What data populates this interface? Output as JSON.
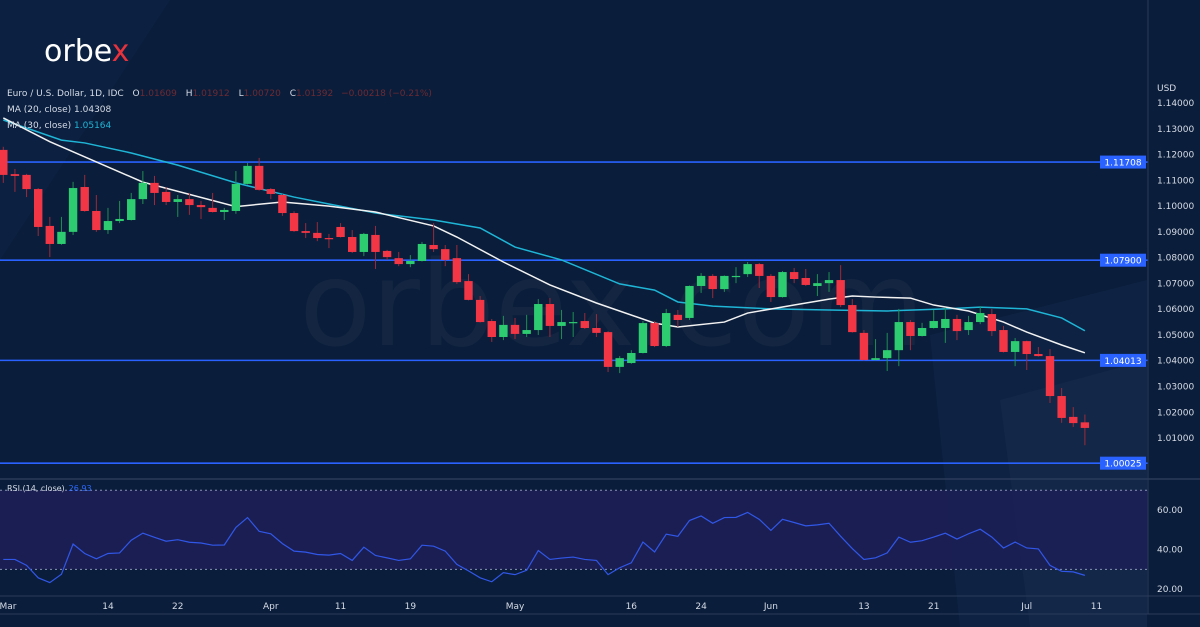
{
  "logo": {
    "text_main": "orbe",
    "text_accent": "x",
    "accent_color": "#e8323c"
  },
  "watermark": "orbex.com",
  "legend": {
    "symbol": "Euro / U.S. Dollar, 1D, IDC",
    "o_label": "O",
    "o_value": "1.01609",
    "h_label": "H",
    "h_value": "1.01912",
    "l_label": "L",
    "l_value": "1.00720",
    "c_label": "C",
    "c_value": "1.01392",
    "change": "−0.00218 (−0.21%)",
    "ma20_label": "MA (20, close)",
    "ma20_value": "1.04308",
    "ma30_label": "MA (30, close)",
    "ma30_value": "1.05164"
  },
  "rsi_legend": {
    "label": "RSI (14, close)",
    "value": "26.93"
  },
  "colors": {
    "background": "#0a1d3a",
    "up": "#2ecc71",
    "down": "#f23645",
    "ma20": "#f2f2f2",
    "ma30": "#1fb5d6",
    "levels": "#2962ff",
    "rsi": "#3157e8",
    "rsi_band": "#1c1f55"
  },
  "chart_data": [
    {
      "type": "candlestick",
      "currency_label": "USD",
      "ylim": [
        0.9995,
        1.1438
      ],
      "y_ticks": [
        "1.14000",
        "1.13000",
        "1.12000",
        "1.11000",
        "1.10000",
        "1.09000",
        "1.08000",
        "1.07000",
        "1.06000",
        "1.05000",
        "1.04000",
        "1.03000",
        "1.02000",
        "1.01000"
      ],
      "x_ticks": [
        {
          "date": "Mar 1",
          "label": "Mar"
        },
        {
          "date": "Mar 14",
          "label": "14"
        },
        {
          "date": "Mar 22",
          "label": "22"
        },
        {
          "date": "Apr 1",
          "label": "Apr"
        },
        {
          "date": "Apr 11",
          "label": "11"
        },
        {
          "date": "Apr 19",
          "label": "19"
        },
        {
          "date": "May 2",
          "label": "May"
        },
        {
          "date": "May 16",
          "label": "16"
        },
        {
          "date": "May 24",
          "label": "24"
        },
        {
          "date": "Jun 1",
          "label": "Jun"
        },
        {
          "date": "Jun 13",
          "label": "13"
        },
        {
          "date": "Jun 21",
          "label": "21"
        },
        {
          "date": "Jul 1",
          "label": "Jul"
        },
        {
          "date": "Jul 11",
          "label": "11"
        }
      ],
      "horizontal_levels": [
        "1.11708",
        "1.07900",
        "1.04013",
        "1.00025"
      ],
      "candles_columns": [
        "date",
        "open",
        "high",
        "low",
        "close"
      ],
      "candles": [
        [
          "Mar 1",
          1.1218,
          1.123,
          1.109,
          1.1121
        ],
        [
          "Mar 2",
          1.1124,
          1.1144,
          1.1055,
          1.1117
        ],
        [
          "Mar 3",
          1.1121,
          1.1125,
          1.1035,
          1.1066
        ],
        [
          "Mar 4",
          1.1066,
          1.107,
          1.0884,
          1.0919
        ],
        [
          "Mar 7",
          1.0923,
          1.0958,
          1.0802,
          1.0853
        ],
        [
          "Mar 8",
          1.0853,
          1.0958,
          1.085,
          1.09
        ],
        [
          "Mar 9",
          1.09,
          1.1094,
          1.0888,
          1.107
        ],
        [
          "Mar 10",
          1.1074,
          1.1121,
          1.0978,
          1.0981
        ],
        [
          "Mar 11",
          1.0981,
          1.1043,
          1.09,
          1.0907
        ],
        [
          "Mar 14",
          1.0907,
          1.0993,
          1.0892,
          1.0942
        ],
        [
          "Mar 15",
          1.0942,
          1.102,
          1.0934,
          1.095
        ],
        [
          "Mar 16",
          1.0946,
          1.1051,
          1.0944,
          1.1027
        ],
        [
          "Mar 17",
          1.1027,
          1.1136,
          1.1008,
          1.109
        ],
        [
          "Mar 18",
          1.109,
          1.1117,
          1.1004,
          1.1051
        ],
        [
          "Mar 21",
          1.1055,
          1.1074,
          1.1004,
          1.1016
        ],
        [
          "Mar 22",
          1.1016,
          1.1043,
          1.0958,
          1.1027
        ],
        [
          "Mar 23",
          1.1027,
          1.1051,
          1.0966,
          1.1004
        ],
        [
          "Mar 24",
          1.1004,
          1.102,
          1.095,
          1.0996
        ],
        [
          "Mar 25",
          1.0993,
          1.1051,
          1.0975,
          1.0977
        ],
        [
          "Mar 28",
          1.0977,
          1.0993,
          1.0946,
          1.0985
        ],
        [
          "Mar 29",
          1.0981,
          1.1136,
          1.097,
          1.1086
        ],
        [
          "Mar 30",
          1.1086,
          1.1167,
          1.1084,
          1.1156
        ],
        [
          "Mar 31",
          1.1156,
          1.1187,
          1.106,
          1.1063
        ],
        [
          "Apr 1",
          1.1066,
          1.107,
          1.1027,
          1.1047
        ],
        [
          "Apr 4",
          1.1043,
          1.1047,
          1.0962,
          1.0973
        ],
        [
          "Apr 5",
          1.0973,
          1.098,
          1.09,
          1.0903
        ],
        [
          "Apr 6",
          1.0903,
          1.0934,
          1.0876,
          1.0896
        ],
        [
          "Apr 7",
          1.0896,
          1.0938,
          1.0864,
          1.0876
        ],
        [
          "Apr 8",
          1.0876,
          1.0892,
          1.0837,
          1.0872
        ],
        [
          "Apr 11",
          1.0919,
          1.0934,
          1.0878,
          1.088
        ],
        [
          "Apr 12",
          1.088,
          1.0907,
          1.0818,
          1.0822
        ],
        [
          "Apr 13",
          1.0822,
          1.0896,
          1.0806,
          1.0892
        ],
        [
          "Apr 14",
          1.0888,
          1.0923,
          1.0756,
          1.0822
        ],
        [
          "Apr 15",
          1.0826,
          1.083,
          1.0791,
          1.0802
        ],
        [
          "Apr 18",
          1.0798,
          1.0822,
          1.0767,
          1.0775
        ],
        [
          "Apr 19",
          1.0775,
          1.081,
          1.0763,
          1.0787
        ],
        [
          "Apr 20",
          1.0787,
          1.0861,
          1.0785,
          1.0853
        ],
        [
          "Apr 21",
          1.0849,
          1.0934,
          1.0822,
          1.0833
        ],
        [
          "Apr 22",
          1.0833,
          1.0849,
          1.0767,
          1.0791
        ],
        [
          "Apr 25",
          1.0798,
          1.0849,
          1.0698,
          1.0705
        ],
        [
          "Apr 26",
          1.0709,
          1.0736,
          1.0634,
          1.0636
        ],
        [
          "Apr 27",
          1.0636,
          1.0651,
          1.0548,
          1.055
        ],
        [
          "Apr 28",
          1.0554,
          1.0562,
          1.0473,
          1.0492
        ],
        [
          "Apr 29",
          1.0492,
          1.0574,
          1.048,
          1.0539
        ],
        [
          "May 2",
          1.0539,
          1.0566,
          1.0484,
          1.0504
        ],
        [
          "May 3",
          1.0504,
          1.0578,
          1.0492,
          1.0519
        ],
        [
          "May 4",
          1.0519,
          1.0639,
          1.05,
          1.062
        ],
        [
          "May 5",
          1.062,
          1.0643,
          1.0492,
          1.0535
        ],
        [
          "May 6",
          1.0535,
          1.0597,
          1.0484,
          1.055
        ],
        [
          "May 9",
          1.0547,
          1.0589,
          1.0492,
          1.055
        ],
        [
          "May 10",
          1.0554,
          1.0585,
          1.0523,
          1.0527
        ],
        [
          "May 11",
          1.0527,
          1.0581,
          1.0492,
          1.0508
        ],
        [
          "May 12",
          1.0511,
          1.0515,
          1.0356,
          1.0376
        ],
        [
          "May 13",
          1.0376,
          1.0418,
          1.0352,
          1.041
        ],
        [
          "May 16",
          1.0391,
          1.0441,
          1.0388,
          1.043
        ],
        [
          "May 17",
          1.043,
          1.0554,
          1.0428,
          1.0546
        ],
        [
          "May 18",
          1.0546,
          1.0554,
          1.0453,
          1.0457
        ],
        [
          "May 19",
          1.0457,
          1.0601,
          1.0453,
          1.0585
        ],
        [
          "May 20",
          1.0578,
          1.0597,
          1.0531,
          1.0558
        ],
        [
          "May 23",
          1.0566,
          1.0692,
          1.0558,
          1.069
        ],
        [
          "May 24",
          1.069,
          1.074,
          1.0663,
          1.0729
        ],
        [
          "May 25",
          1.0729,
          1.0736,
          1.0643,
          1.0678
        ],
        [
          "May 26",
          1.0678,
          1.0731,
          1.0667,
          1.0729
        ],
        [
          "May 27",
          1.0725,
          1.0763,
          1.0701,
          1.0729
        ],
        [
          "May 30",
          1.0736,
          1.0783,
          1.0725,
          1.0775
        ],
        [
          "May 31",
          1.0775,
          1.0779,
          1.0682,
          1.0729
        ],
        [
          "Jun 1",
          1.0729,
          1.0736,
          1.0628,
          1.0647
        ],
        [
          "Jun 2",
          1.0647,
          1.0748,
          1.0645,
          1.0744
        ],
        [
          "Jun 3",
          1.0744,
          1.076,
          1.0701,
          1.0717
        ],
        [
          "Jun 6",
          1.0721,
          1.0756,
          1.069,
          1.0694
        ],
        [
          "Jun 7",
          1.069,
          1.0736,
          1.0651,
          1.0701
        ],
        [
          "Jun 8",
          1.0701,
          1.0744,
          1.0667,
          1.0713
        ],
        [
          "Jun 9",
          1.0713,
          1.0771,
          1.0608,
          1.0616
        ],
        [
          "Jun 10",
          1.0616,
          1.0639,
          1.0509,
          1.0511
        ],
        [
          "Jun 13",
          1.0508,
          1.0519,
          1.0401,
          1.0403
        ],
        [
          "Jun 14",
          1.0403,
          1.0484,
          1.0401,
          1.041
        ],
        [
          "Jun 15",
          1.041,
          1.0508,
          1.036,
          1.0441
        ],
        [
          "Jun 16",
          1.0441,
          1.0601,
          1.0379,
          1.055
        ],
        [
          "Jun 17",
          1.055,
          1.0558,
          1.0441,
          1.0496
        ],
        [
          "Jun 20",
          1.0496,
          1.0547,
          1.0494,
          1.0527
        ],
        [
          "Jun 21",
          1.0527,
          1.0597,
          1.0525,
          1.0554
        ],
        [
          "Jun 22",
          1.0527,
          1.0605,
          1.0469,
          1.0562
        ],
        [
          "Jun 23",
          1.0562,
          1.0578,
          1.048,
          1.0515
        ],
        [
          "Jun 24",
          1.0519,
          1.0574,
          1.05,
          1.055
        ],
        [
          "Jun 27",
          1.055,
          1.0612,
          1.0542,
          1.0585
        ],
        [
          "Jun 28",
          1.0581,
          1.0601,
          1.0496,
          1.0515
        ],
        [
          "Jun 29",
          1.0519,
          1.0535,
          1.0432,
          1.0434
        ],
        [
          "Jun 30",
          1.0434,
          1.0488,
          1.0379,
          1.0476
        ],
        [
          "Jul 1",
          1.0476,
          1.0478,
          1.0364,
          1.0426
        ],
        [
          "Jul 4",
          1.0426,
          1.0453,
          1.0416,
          1.0418
        ],
        [
          "Jul 5",
          1.0418,
          1.0445,
          1.0236,
          1.0263
        ],
        [
          "Jul 6",
          1.0263,
          1.0294,
          1.0159,
          1.0178
        ],
        [
          "Jul 7",
          1.0182,
          1.022,
          1.0143,
          1.0158
        ],
        [
          "Jul 8",
          1.01609,
          1.01912,
          1.0072,
          1.01392
        ]
      ],
      "ma20": [
        [
          "Mar 1",
          1.1342
        ],
        [
          "Mar 7",
          1.125
        ],
        [
          "Mar 17",
          1.1093
        ],
        [
          "Mar 29",
          1.0998
        ],
        [
          "Apr 4",
          1.1016
        ],
        [
          "Apr 8",
          1.1
        ],
        [
          "Apr 14",
          1.0977
        ],
        [
          "Apr 21",
          1.0923
        ],
        [
          "Apr 25",
          1.088
        ],
        [
          "Apr 29",
          1.0783
        ],
        [
          "May 5",
          1.0694
        ],
        [
          "May 11",
          1.0624
        ],
        [
          "May 18",
          1.0546
        ],
        [
          "May 20",
          1.0531
        ],
        [
          "May 26",
          1.055
        ],
        [
          "May 30",
          1.0585
        ],
        [
          "Jun 3",
          1.0616
        ],
        [
          "Jun 8",
          1.0639
        ],
        [
          "Jun 10",
          1.0651
        ],
        [
          "Jun 14",
          1.0647
        ],
        [
          "Jun 17",
          1.0643
        ],
        [
          "Jun 21",
          1.0616
        ],
        [
          "Jun 24",
          1.0593
        ],
        [
          "Jun 29",
          1.055
        ],
        [
          "Jul 1",
          1.0511
        ],
        [
          "Jul 6",
          1.0461
        ],
        [
          "Jul 8",
          1.04308
        ]
      ],
      "ma30": [
        [
          "Mar 1",
          1.1334
        ],
        [
          "Mar 8",
          1.1256
        ],
        [
          "Mar 10",
          1.1245
        ],
        [
          "Mar 16",
          1.1206
        ],
        [
          "Mar 22",
          1.1159
        ],
        [
          "Mar 29",
          1.109
        ],
        [
          "Apr 5",
          1.1035
        ],
        [
          "Apr 8",
          1.1008
        ],
        [
          "Apr 14",
          1.0973
        ],
        [
          "Apr 21",
          1.0946
        ],
        [
          "Apr 27",
          1.0915
        ],
        [
          "May 2",
          1.0841
        ],
        [
          "May 6",
          1.0791
        ],
        [
          "May 13",
          1.0698
        ],
        [
          "May 18",
          1.0674
        ],
        [
          "May 20",
          1.0628
        ],
        [
          "May 25",
          1.0612
        ],
        [
          "Jun 1",
          1.0601
        ],
        [
          "Jun 8",
          1.0597
        ],
        [
          "Jun 15",
          1.0593
        ],
        [
          "Jun 22",
          1.0601
        ],
        [
          "Jun 27",
          1.0608
        ],
        [
          "Jul 1",
          1.0601
        ],
        [
          "Jul 6",
          1.0566
        ],
        [
          "Jul 8",
          1.05164
        ]
      ]
    },
    {
      "type": "line",
      "name": "RSI (14, close)",
      "ylim": [
        17,
        71
      ],
      "y_ticks": [
        "60.00",
        "40.00",
        "20.00"
      ],
      "band": [
        30,
        70
      ],
      "values": [
        35.0,
        35.0,
        32.0,
        25.7,
        23.3,
        27.5,
        42.8,
        38.0,
        35.3,
        38.0,
        38.3,
        44.7,
        48.3,
        46.2,
        44.2,
        45.0,
        43.7,
        43.3,
        42.2,
        42.3,
        51.2,
        56.2,
        49.2,
        48.0,
        43.0,
        39.2,
        38.7,
        37.5,
        37.2,
        38.0,
        34.5,
        41.2,
        37.0,
        35.8,
        34.5,
        35.3,
        42.2,
        41.7,
        39.2,
        32.5,
        29.2,
        25.7,
        23.7,
        28.3,
        27.3,
        29.5,
        39.5,
        35.0,
        35.7,
        36.2,
        35.0,
        34.5,
        27.3,
        30.8,
        33.3,
        43.8,
        38.8,
        47.8,
        46.7,
        54.7,
        57.0,
        53.3,
        56.2,
        56.3,
        58.8,
        55.3,
        49.7,
        55.3,
        53.7,
        52.0,
        52.5,
        53.3,
        46.7,
        40.5,
        35.0,
        35.8,
        38.3,
        46.3,
        43.7,
        44.5,
        46.3,
        48.3,
        45.3,
        48.0,
        50.3,
        46.3,
        40.8,
        43.8,
        40.8,
        40.3,
        32.0,
        29.0,
        28.7,
        26.93
      ]
    }
  ]
}
